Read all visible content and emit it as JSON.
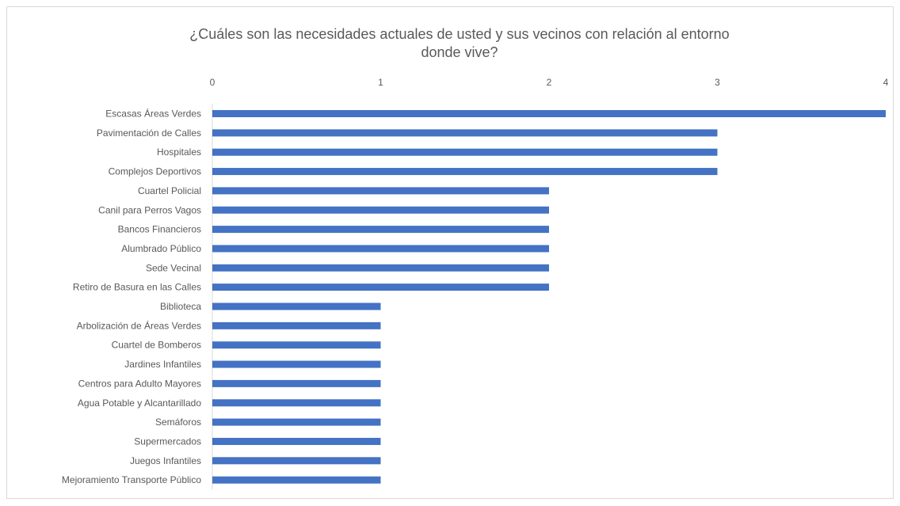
{
  "chart_data": {
    "type": "bar",
    "orientation": "horizontal",
    "title": "¿Cuáles son las necesidades actuales de usted y sus vecinos con relación al entorno donde vive?",
    "xlabel": "",
    "ylabel": "",
    "xlim": [
      0,
      4
    ],
    "x_ticks": [
      "0",
      "1",
      "2",
      "3",
      "4"
    ],
    "x_axis_position": "top",
    "grid": false,
    "legend": "none",
    "bar_color": "#4472c4",
    "categories": [
      "Escasas Áreas Verdes",
      "Pavimentación de Calles",
      "Hospitales",
      "Complejos Deportivos",
      "Cuartel Policial",
      "Canil para Perros Vagos",
      "Bancos Financieros",
      "Alumbrado Público",
      "Sede Vecinal",
      "Retiro de Basura en las Calles",
      "Biblioteca",
      "Arbolización de Áreas Verdes",
      "Cuartel de Bomberos",
      "Jardines Infantiles",
      "Centros para Adulto Mayores",
      "Agua Potable y Alcantarillado",
      "Semáforos",
      "Supermercados",
      "Juegos Infantiles",
      "Mejoramiento Transporte Público"
    ],
    "values": [
      4,
      3,
      3,
      3,
      2,
      2,
      2,
      2,
      2,
      2,
      1,
      1,
      1,
      1,
      1,
      1,
      1,
      1,
      1,
      1
    ]
  }
}
